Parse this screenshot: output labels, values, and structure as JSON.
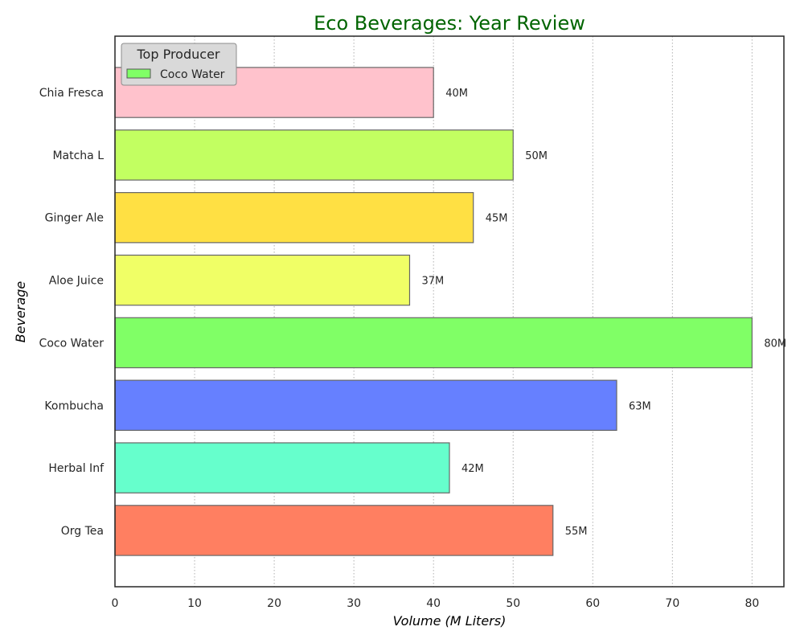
{
  "chart_data": {
    "type": "bar",
    "orientation": "horizontal",
    "title": "Eco Beverages: Year Review",
    "title_color": "#006400",
    "xlabel": "Volume (M Liters)",
    "ylabel": "Beverage",
    "xlim": [
      0,
      84
    ],
    "xticks": [
      "0",
      "10",
      "20",
      "30",
      "40",
      "50",
      "60",
      "70",
      "80"
    ],
    "xtick_values": [
      0,
      10,
      20,
      30,
      40,
      50,
      60,
      70,
      80
    ],
    "grid": "x-dotted",
    "categories": [
      "Org Tea",
      "Herbal Inf",
      "Kombucha",
      "Coco Water",
      "Aloe Juice",
      "Ginger Ale",
      "Matcha L",
      "Chia Fresca"
    ],
    "values": [
      55,
      42,
      63,
      80,
      37,
      45,
      50,
      40
    ],
    "data_labels": [
      "55M",
      "42M",
      "63M",
      "80M",
      "37M",
      "45M",
      "50M",
      "40M"
    ],
    "colors": [
      "#ff7f61",
      "#66ffcc",
      "#6680ff",
      "#80ff66",
      "#f0ff66",
      "#ffe043",
      "#c2ff61",
      "#ffc2cc"
    ],
    "legend": {
      "title": "Top Producer",
      "placement": "top-left",
      "entries": [
        {
          "label": "Coco Water",
          "color": "#80ff66"
        }
      ]
    }
  }
}
